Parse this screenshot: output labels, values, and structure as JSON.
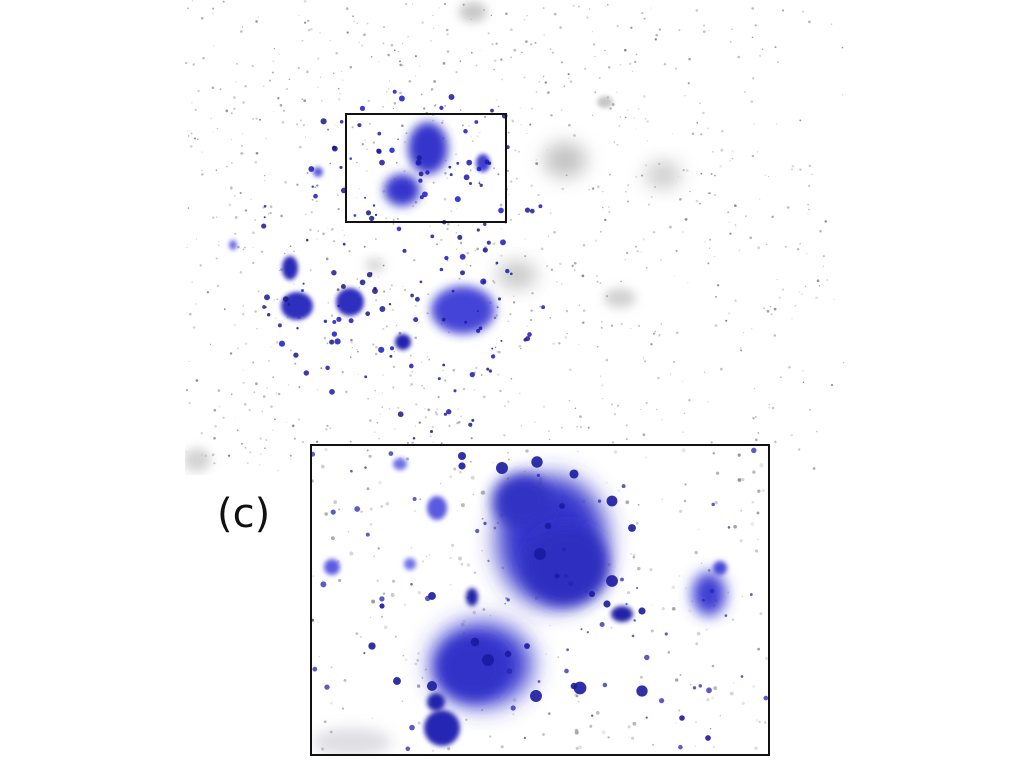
{
  "panel": {
    "label": "(c)"
  },
  "colors": {
    "background": "#ffffff",
    "cluster_blue": "#3a3ad6",
    "dense_blue": "#1c1ca8",
    "halo_gray": "#b8b8b8",
    "frame": "#111111"
  },
  "icons": {
    "overview": "astronomical-field-image",
    "inset": "zoomed-field-image"
  }
}
